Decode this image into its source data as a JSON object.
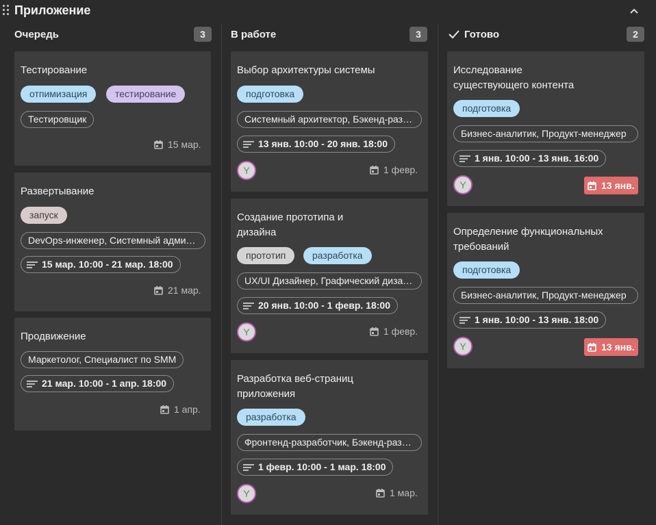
{
  "app": {
    "title": "Приложение",
    "drag_icon": "drag-handle-icon",
    "collapse_icon": "chevron-up-icon"
  },
  "colors": {
    "background": "#2b2b2b",
    "card": "#3d3d3d",
    "chip_blue": "#b6def7",
    "chip_purple": "#d3c4ee",
    "chip_mauve": "#d8cbcb",
    "chip_grey": "#d4d4d4",
    "overdue": "#e06c6c",
    "avatar_border": "#b75cb1"
  },
  "columns": [
    {
      "title": "Очередь",
      "count": "3",
      "cards": [
        {
          "title": "Тестирование",
          "tags": [
            "отпимизация",
            "тестирование"
          ],
          "assignee": "Тестировщик",
          "due": "15 мар."
        },
        {
          "title": "Развертывание",
          "tags": [
            "запуск"
          ],
          "roles": "DevOps-инженер, Системный администратор",
          "dates": "15 мар. 10:00 - 21 мар. 18:00",
          "due": "21 мар."
        },
        {
          "title": "Продвижение",
          "roles": "Маркетолог, Специалист по SMM",
          "dates": "21 мар. 10:00 - 1 апр. 18:00",
          "due": "1 апр."
        }
      ]
    },
    {
      "title": "В работе",
      "count": "3",
      "cards": [
        {
          "title": "Выбор архитектуры системы",
          "tags": [
            "подготовка"
          ],
          "roles": "Системный архитектор, Бэкенд-разработчик",
          "dates": "13 янв. 10:00 - 20 янв. 18:00",
          "avatar": "Y",
          "due": "1 февр."
        },
        {
          "title": "Создание прототипа и дизайна",
          "tags": [
            "прототип",
            "разработка"
          ],
          "roles": "UX/UI Дизайнер, Графический дизайнер",
          "dates": "20 янв. 10:00 - 1 февр. 18:00",
          "avatar": "Y",
          "due": "1 февр."
        },
        {
          "title": "Разработка веб-страниц приложения",
          "tags": [
            "разработка"
          ],
          "roles": "Фронтенд-разработчик, Бэкенд-разработчик",
          "dates": "1 февр. 10:00 - 1 мар. 18:00",
          "avatar": "Y",
          "due": "1 мар."
        }
      ]
    },
    {
      "title": "Готово",
      "count": "2",
      "icon": "checkmark-icon",
      "cards": [
        {
          "title": "Исследование существующего контента",
          "tags": [
            "подготовка"
          ],
          "roles": "Бизнес-аналитик, Продукт-менеджер",
          "dates": "1 янв. 10:00 - 13 янв. 16:00",
          "avatar": "Y",
          "due": "13 янв."
        },
        {
          "title": "Определение функциональных требований",
          "tags": [
            "подготовка"
          ],
          "roles": "Бизнес-аналитик, Продукт-менеджер",
          "dates": "1 янв. 10:00 - 13 янв. 18:00",
          "avatar": "Y",
          "due": "13 янв."
        }
      ]
    }
  ]
}
